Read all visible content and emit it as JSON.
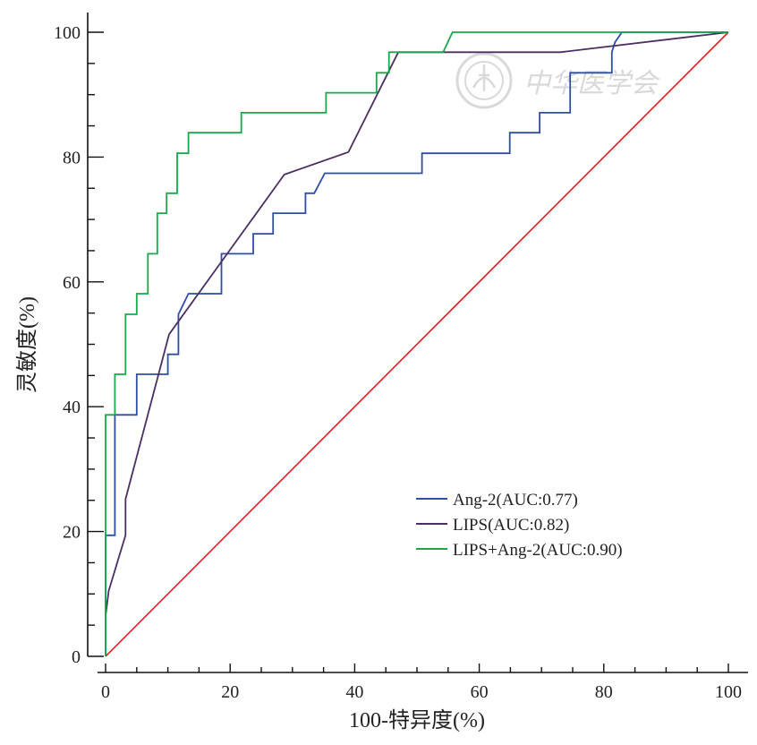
{
  "chart_data": {
    "type": "line",
    "xlabel": "100-特异度(%)",
    "ylabel": "灵敏度(%)",
    "xlim": [
      0,
      100
    ],
    "ylim": [
      0,
      100
    ],
    "x_ticks": [
      "0",
      "20",
      "40",
      "60",
      "80",
      "100"
    ],
    "y_ticks": [
      "0",
      "20",
      "40",
      "60",
      "80",
      "100"
    ],
    "grid": false,
    "legend_position": "lower-right",
    "watermark": "中华医学会",
    "reference_line": {
      "color": "#e02020",
      "points": [
        [
          0,
          0
        ],
        [
          100,
          100
        ]
      ]
    },
    "series": [
      {
        "name": "Ang-2(AUC:0.77)",
        "color": "#2e4fa3",
        "points": [
          [
            0,
            0
          ],
          [
            0,
            19.4
          ],
          [
            1.5,
            19.4
          ],
          [
            1.5,
            38.7
          ],
          [
            5,
            38.7
          ],
          [
            5,
            45.2
          ],
          [
            10,
            45.2
          ],
          [
            10,
            48.4
          ],
          [
            11.7,
            48.4
          ],
          [
            11.7,
            54.8
          ],
          [
            13.3,
            58.1
          ],
          [
            18.6,
            58.1
          ],
          [
            18.6,
            64.5
          ],
          [
            23.7,
            64.5
          ],
          [
            23.7,
            67.7
          ],
          [
            26.9,
            67.7
          ],
          [
            26.9,
            71
          ],
          [
            32.1,
            71
          ],
          [
            32.1,
            74.2
          ],
          [
            33.5,
            74.2
          ],
          [
            35.2,
            77.4
          ],
          [
            50.8,
            77.4
          ],
          [
            50.8,
            80.6
          ],
          [
            64.9,
            80.6
          ],
          [
            64.9,
            83.9
          ],
          [
            69.7,
            83.9
          ],
          [
            69.7,
            87.1
          ],
          [
            74.6,
            87.1
          ],
          [
            74.6,
            93.5
          ],
          [
            81.3,
            93.5
          ],
          [
            81.3,
            96.8
          ],
          [
            81.8,
            98.4
          ],
          [
            82.9,
            100
          ],
          [
            100,
            100
          ]
        ]
      },
      {
        "name": "LIPS(AUC:0.82)",
        "color": "#4a2f63",
        "points": [
          [
            0,
            6.5
          ],
          [
            0.5,
            10.5
          ],
          [
            2.2,
            16.1
          ],
          [
            3.2,
            19.4
          ],
          [
            3.2,
            25.2
          ],
          [
            10.2,
            51.6
          ],
          [
            28.7,
            77.2
          ],
          [
            39,
            80.8
          ],
          [
            47,
            96.8
          ],
          [
            73,
            96.8
          ],
          [
            100,
            100
          ]
        ]
      },
      {
        "name": "LIPS+Ang-2(AUC:0.90)",
        "color": "#1aa84a",
        "points": [
          [
            0,
            0
          ],
          [
            0,
            38.7
          ],
          [
            1.5,
            38.7
          ],
          [
            1.5,
            45.2
          ],
          [
            3.2,
            45.2
          ],
          [
            3.2,
            54.8
          ],
          [
            5,
            54.8
          ],
          [
            5,
            58.1
          ],
          [
            6.8,
            58.1
          ],
          [
            6.8,
            64.5
          ],
          [
            8.3,
            64.5
          ],
          [
            8.3,
            71
          ],
          [
            9.8,
            71
          ],
          [
            9.8,
            74.2
          ],
          [
            11.5,
            74.2
          ],
          [
            11.5,
            80.6
          ],
          [
            13.3,
            80.6
          ],
          [
            13.3,
            83.9
          ],
          [
            21.8,
            83.9
          ],
          [
            21.8,
            87.1
          ],
          [
            35.4,
            87.1
          ],
          [
            35.4,
            90.3
          ],
          [
            43.5,
            90.3
          ],
          [
            43.5,
            93.5
          ],
          [
            45.5,
            93.5
          ],
          [
            45.5,
            96.8
          ],
          [
            54.2,
            96.8
          ],
          [
            55.7,
            100
          ],
          [
            100,
            100
          ]
        ]
      }
    ]
  }
}
